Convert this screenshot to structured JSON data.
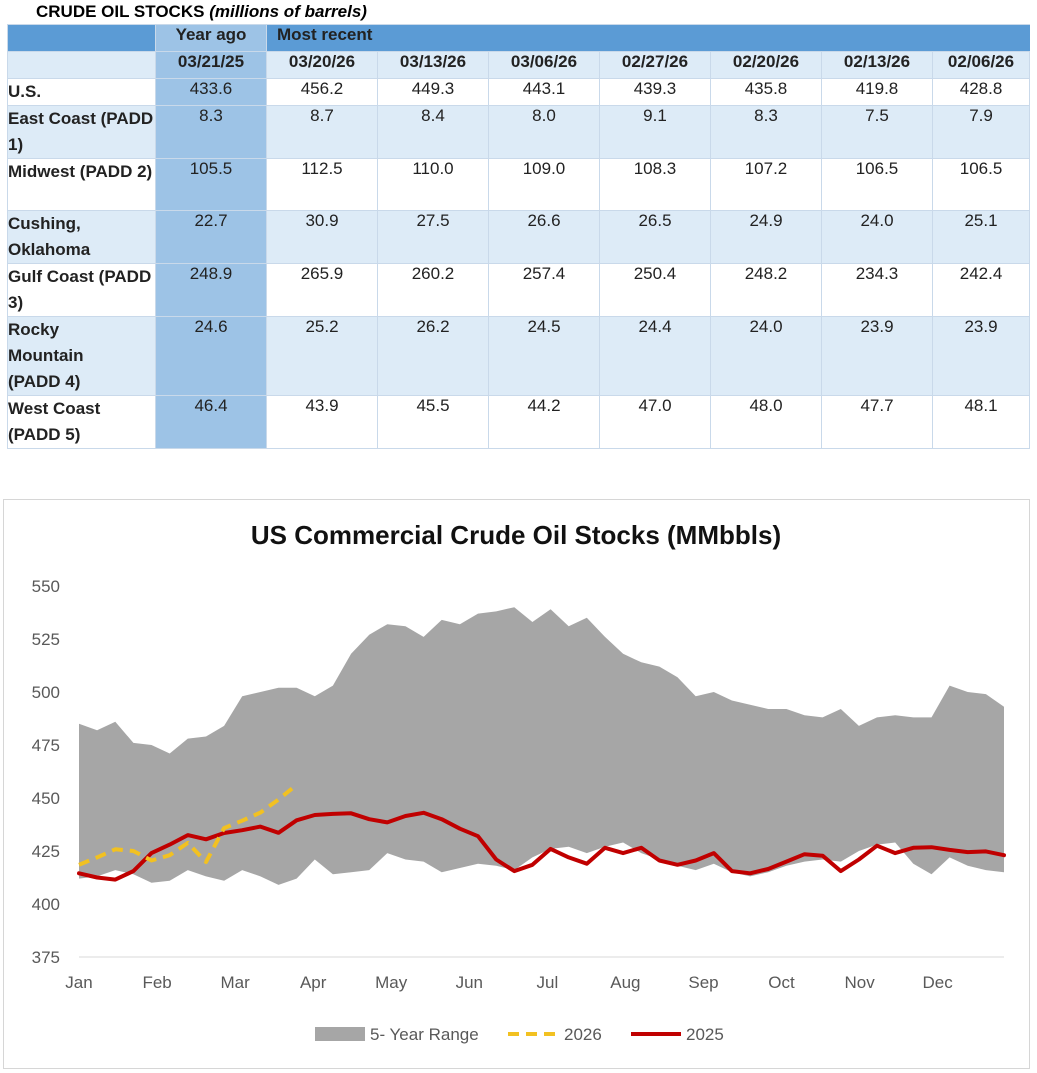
{
  "table": {
    "title_main": "CRUDE OIL STOCKS",
    "title_units": "(millions of barrels)",
    "header_year_ago": "Year ago",
    "header_most_recent": "Most recent",
    "dates": [
      "03/21/25",
      "03/20/26",
      "03/13/26",
      "03/06/26",
      "02/27/26",
      "02/20/26",
      "02/13/26",
      "02/06/26"
    ],
    "rows": [
      {
        "label": "U.S.",
        "values": [
          "433.6",
          "456.2",
          "449.3",
          "443.1",
          "439.3",
          "435.8",
          "419.8",
          "428.8"
        ]
      },
      {
        "label": "East Coast (PADD 1)",
        "values": [
          "8.3",
          "8.7",
          "8.4",
          "8.0",
          "9.1",
          "8.3",
          "7.5",
          "7.9"
        ]
      },
      {
        "label": "Midwest (PADD 2)",
        "values": [
          "105.5",
          "112.5",
          "110.0",
          "109.0",
          "108.3",
          "107.2",
          "106.5",
          "106.5"
        ]
      },
      {
        "label": "Cushing, Oklahoma",
        "values": [
          "22.7",
          "30.9",
          "27.5",
          "26.6",
          "26.5",
          "24.9",
          "24.0",
          "25.1"
        ]
      },
      {
        "label": "Gulf Coast (PADD 3)",
        "values": [
          "248.9",
          "265.9",
          "260.2",
          "257.4",
          "250.4",
          "248.2",
          "234.3",
          "242.4"
        ]
      },
      {
        "label": "Rocky Mountain (PADD 4)",
        "values": [
          "24.6",
          "25.2",
          "26.2",
          "24.5",
          "24.4",
          "24.0",
          "23.9",
          "23.9"
        ]
      },
      {
        "label": "West Coast (PADD 5)",
        "values": [
          "46.4",
          "43.9",
          "45.5",
          "44.2",
          "47.0",
          "48.0",
          "47.7",
          "48.1"
        ]
      }
    ]
  },
  "chart_data": {
    "type": "area",
    "title": "US Commercial Crude Oil Stocks (MMbbls)",
    "xlabel": "",
    "ylabel": "",
    "ylim": [
      375,
      550
    ],
    "yticks": [
      "375",
      "400",
      "425",
      "450",
      "475",
      "500",
      "525",
      "550"
    ],
    "xticks": [
      "Jan",
      "Feb",
      "Mar",
      "Apr",
      "May",
      "Jun",
      "Jul",
      "Aug",
      "Sep",
      "Oct",
      "Nov",
      "Dec"
    ],
    "weeks": 52,
    "range_max": [
      485,
      482,
      486,
      476,
      475,
      471,
      478,
      479,
      484,
      498,
      500,
      502,
      502,
      498,
      503,
      518,
      527,
      532,
      531,
      526,
      534,
      532,
      537,
      538,
      540,
      533,
      539,
      531,
      535,
      526,
      518,
      514,
      512,
      507,
      498,
      500,
      496,
      494,
      492,
      492,
      489,
      488,
      492,
      484,
      488,
      489,
      488,
      488,
      503,
      500,
      499,
      493
    ],
    "range_min": [
      412,
      413,
      416,
      414,
      410,
      411,
      416,
      413,
      411,
      416,
      413,
      409,
      412,
      421,
      414,
      415,
      416,
      424,
      421,
      420,
      415,
      417,
      419,
      418,
      416,
      422,
      426,
      427,
      424,
      427,
      429,
      424,
      421,
      418,
      416,
      419,
      415,
      413,
      415,
      418,
      420,
      421,
      420,
      425,
      428,
      429,
      419,
      414,
      422,
      418,
      416,
      415
    ],
    "series": [
      {
        "name": "2026",
        "color": "#f2c121",
        "dashed": true,
        "values": [
          418.5,
          422,
          425.8,
          425,
          420.5,
          423,
          428.8,
          419.8,
          435.8,
          439.3,
          443.1,
          449.3,
          456.2
        ]
      },
      {
        "name": "2025",
        "color": "#c00000",
        "dashed": false,
        "values": [
          414.5,
          412.5,
          411.5,
          415.5,
          424,
          428,
          432.5,
          430.5,
          433.5,
          434.8,
          436.5,
          433.6,
          439.5,
          442,
          442.5,
          442.8,
          440,
          438.5,
          441.5,
          443,
          440,
          435.5,
          432,
          421,
          415.5,
          418.5,
          426,
          422,
          419,
          426.5,
          424,
          426.5,
          420.5,
          418.5,
          420.5,
          424,
          415.5,
          414.5,
          416.5,
          420,
          423.5,
          422.8,
          415.5,
          421,
          427.5,
          424,
          426.5,
          426.8,
          425.5,
          424.5,
          424.8,
          423
        ]
      }
    ],
    "legend": [
      {
        "label": "5- Year Range",
        "color": "#a6a6a6"
      },
      {
        "label": "2026",
        "color": "#f2c121"
      },
      {
        "label": "2025",
        "color": "#c00000"
      }
    ],
    "legend_position": "bottom"
  }
}
